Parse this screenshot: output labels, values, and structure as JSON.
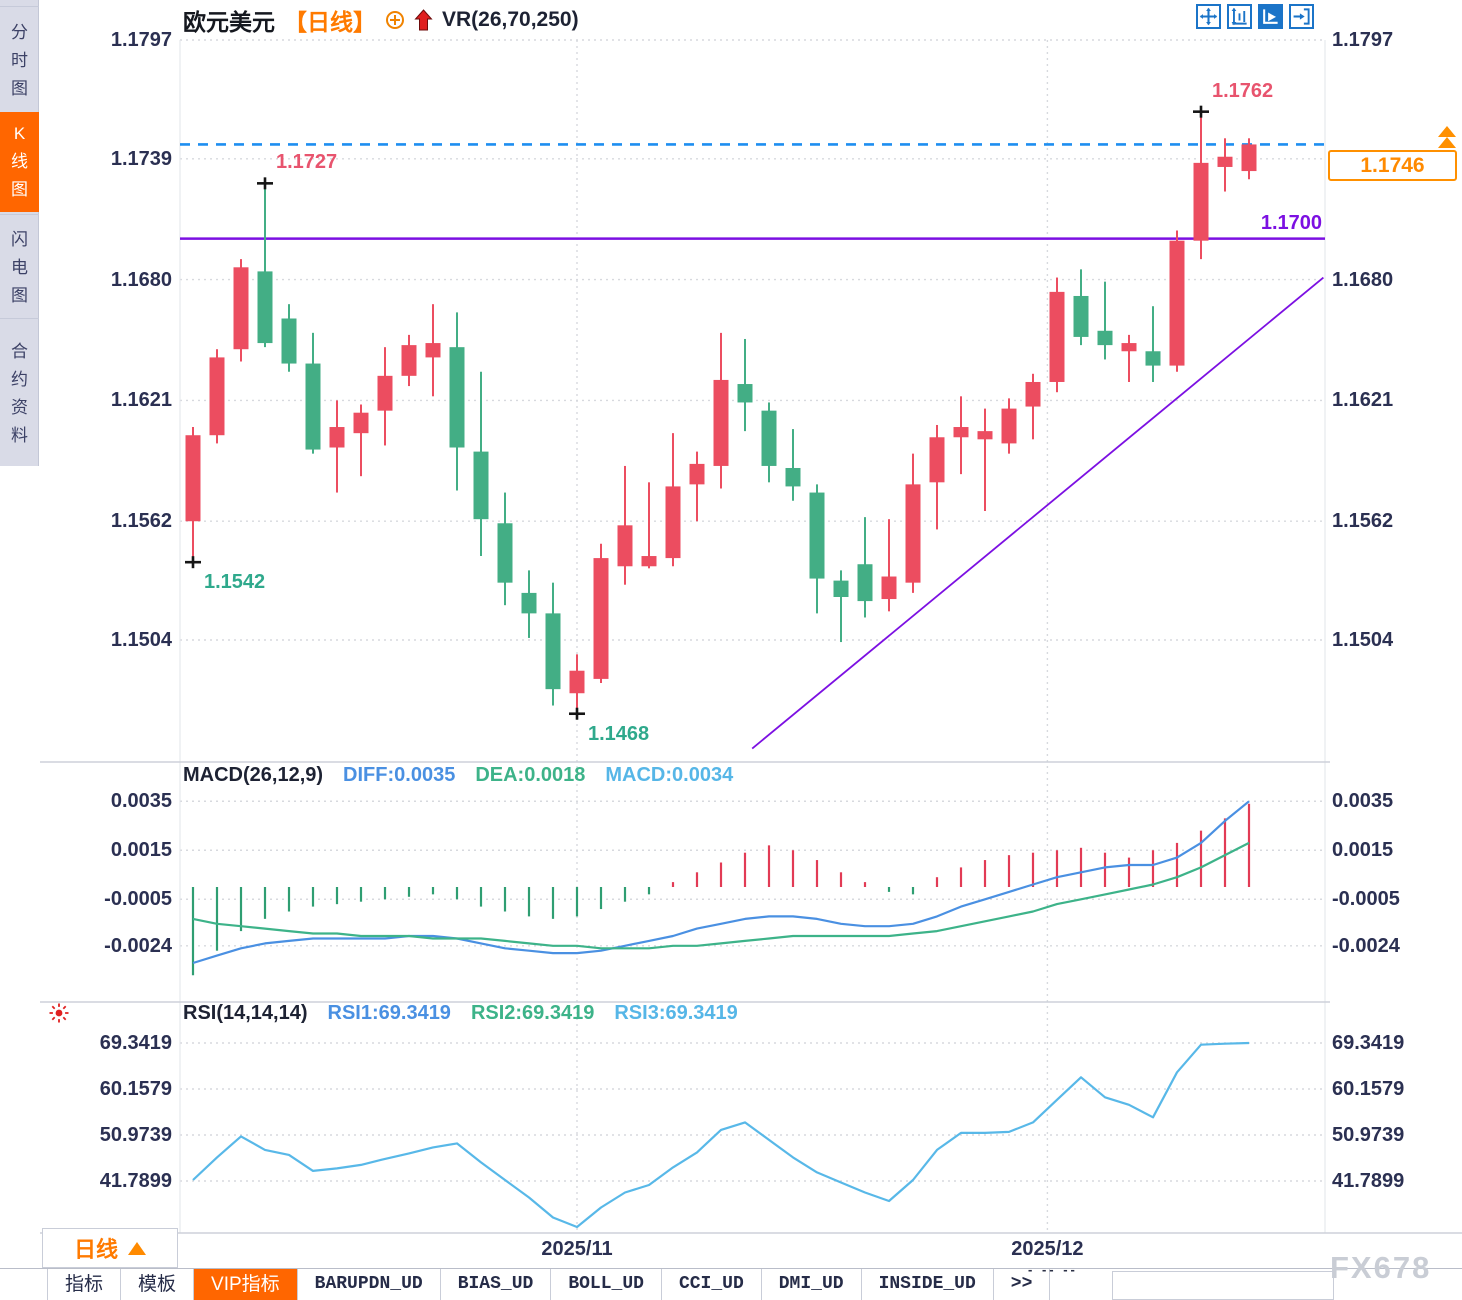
{
  "window": {
    "watermark": "FX678"
  },
  "sidebar": {
    "items": [
      {
        "label": "分时图",
        "active": false
      },
      {
        "label": "K线图",
        "active": true
      },
      {
        "label": "闪电图",
        "active": false
      },
      {
        "label": "合约资料",
        "active": false
      }
    ]
  },
  "header": {
    "symbol": "欧元美元",
    "period": "【日线】",
    "indicator": "VR(26,70,250)"
  },
  "main_chart": {
    "y_axis_left": [
      "1.1797",
      "1.1739",
      "1.1680",
      "1.1621",
      "1.1562",
      "1.1504"
    ],
    "y_axis_right": [
      "1.1797",
      "1.1680",
      "1.1621",
      "1.1562",
      "1.1504"
    ],
    "support_label": "1.1700",
    "current_price": "1.1746"
  },
  "macd_panel": {
    "title": "MACD(26,12,9)",
    "diff_label": "DIFF:0.0035",
    "dea_label": "DEA:0.0018",
    "macd_label": "MACD:0.0034",
    "axis": [
      "0.0035",
      "0.0015",
      "-0.0005",
      "-0.0024"
    ]
  },
  "rsi_panel": {
    "title": "RSI(14,14,14)",
    "rsi1_label": "RSI1:69.3419",
    "rsi2_label": "RSI2:69.3419",
    "rsi3_label": "RSI3:69.3419",
    "axis": [
      "69.3419",
      "60.1579",
      "50.9739",
      "41.7899"
    ]
  },
  "bottom": {
    "period_selector": "日线",
    "stray_marks": "- -- --",
    "tabs": [
      {
        "label": "指标",
        "active": false,
        "mono": false
      },
      {
        "label": "模板",
        "active": false,
        "mono": false
      },
      {
        "label": "VIP指标",
        "active": true,
        "mono": false
      },
      {
        "label": "BARUPDN_UD",
        "active": false,
        "mono": true
      },
      {
        "label": "BIAS_UD",
        "active": false,
        "mono": true
      },
      {
        "label": "BOLL_UD",
        "active": false,
        "mono": true
      },
      {
        "label": "CCI_UD",
        "active": false,
        "mono": true
      },
      {
        "label": "DMI_UD",
        "active": false,
        "mono": true
      },
      {
        "label": "INSIDE_UD",
        "active": false,
        "mono": true
      },
      {
        "label": ">>",
        "active": false,
        "mono": true
      }
    ]
  },
  "chart_data": {
    "type": "candlestick",
    "title": "欧元美元 日线 (EUR/USD Daily)",
    "price_axis_ticks": [
      1.1797,
      1.1739,
      1.168,
      1.1621,
      1.1562,
      1.1504
    ],
    "month_gridlines": [
      {
        "index": 16,
        "label": "2025/11"
      },
      {
        "index": 35.6,
        "label": "2025/12"
      }
    ],
    "candles": [
      [
        1.1562,
        1.1608,
        1.1542,
        1.1604
      ],
      [
        1.1604,
        1.1646,
        1.16,
        1.1642
      ],
      [
        1.1646,
        1.169,
        1.164,
        1.1686
      ],
      [
        1.1684,
        1.1727,
        1.1647,
        1.1649
      ],
      [
        1.1661,
        1.1668,
        1.1635,
        1.1639
      ],
      [
        1.1639,
        1.1654,
        1.1595,
        1.1597
      ],
      [
        1.1598,
        1.1621,
        1.1576,
        1.1608
      ],
      [
        1.1605,
        1.1619,
        1.1584,
        1.1615
      ],
      [
        1.1616,
        1.1647,
        1.1599,
        1.1633
      ],
      [
        1.1633,
        1.1653,
        1.1628,
        1.1648
      ],
      [
        1.1642,
        1.1668,
        1.1623,
        1.1649
      ],
      [
        1.1647,
        1.1664,
        1.1577,
        1.1598
      ],
      [
        1.1596,
        1.1635,
        1.1545,
        1.1563
      ],
      [
        1.1561,
        1.1576,
        1.1521,
        1.1532
      ],
      [
        1.1527,
        1.1538,
        1.1505,
        1.1517
      ],
      [
        1.1517,
        1.1532,
        1.1472,
        1.148
      ],
      [
        1.1478,
        1.1497,
        1.1468,
        1.1489
      ],
      [
        1.1485,
        1.1551,
        1.1483,
        1.1544
      ],
      [
        1.154,
        1.1589,
        1.1531,
        1.156
      ],
      [
        1.154,
        1.1581,
        1.1539,
        1.1545
      ],
      [
        1.1544,
        1.1605,
        1.154,
        1.1579
      ],
      [
        1.158,
        1.1596,
        1.1562,
        1.159
      ],
      [
        1.1589,
        1.1654,
        1.1578,
        1.1631
      ],
      [
        1.1629,
        1.1651,
        1.1606,
        1.162
      ],
      [
        1.1616,
        1.162,
        1.1581,
        1.1589
      ],
      [
        1.1588,
        1.1607,
        1.1572,
        1.1579
      ],
      [
        1.1576,
        1.158,
        1.1517,
        1.1534
      ],
      [
        1.1533,
        1.1538,
        1.1503,
        1.1525
      ],
      [
        1.1541,
        1.1564,
        1.1515,
        1.1523
      ],
      [
        1.1524,
        1.1563,
        1.1518,
        1.1535
      ],
      [
        1.1532,
        1.1595,
        1.1527,
        1.158
      ],
      [
        1.1581,
        1.1609,
        1.1558,
        1.1603
      ],
      [
        1.1603,
        1.1623,
        1.1585,
        1.1608
      ],
      [
        1.1602,
        1.1617,
        1.1567,
        1.1606
      ],
      [
        1.16,
        1.1622,
        1.1595,
        1.1617
      ],
      [
        1.1618,
        1.1634,
        1.1602,
        1.163
      ],
      [
        1.163,
        1.1681,
        1.1625,
        1.1674
      ],
      [
        1.1672,
        1.1685,
        1.1648,
        1.1652
      ],
      [
        1.1655,
        1.1679,
        1.1641,
        1.1648
      ],
      [
        1.1645,
        1.1653,
        1.163,
        1.1649
      ],
      [
        1.1645,
        1.1667,
        1.163,
        1.1638
      ],
      [
        1.1638,
        1.1704,
        1.1635,
        1.1699
      ],
      [
        1.1699,
        1.1762,
        1.169,
        1.1737
      ],
      [
        1.1735,
        1.1749,
        1.1723,
        1.174
      ],
      [
        1.1733,
        1.1749,
        1.1729,
        1.1746
      ]
    ],
    "markers": [
      {
        "index": 0,
        "at": "low",
        "label": "1.1542"
      },
      {
        "index": 3,
        "at": "high",
        "label": "1.1727"
      },
      {
        "index": 16,
        "at": "low",
        "label": "1.1468"
      },
      {
        "index": 42,
        "at": "high",
        "label": "1.1762"
      }
    ],
    "levels": {
      "resistance_dashed": 1.1746,
      "support": 1.17,
      "current_price": 1.1746
    },
    "trendline": {
      "from_index": 23.3,
      "from_price": 1.1451,
      "to_index": 47.1,
      "to_price": 1.1681
    },
    "macd": {
      "params": [
        26,
        12,
        9
      ],
      "latest": {
        "diff": 0.0035,
        "dea": 0.0018,
        "macd": 0.0034
      },
      "axis_ticks": [
        0.0035,
        0.0015,
        -0.0005,
        -0.0024
      ],
      "diff": [
        -0.0031,
        -0.0028,
        -0.0025,
        -0.0023,
        -0.0022,
        -0.0021,
        -0.0021,
        -0.0021,
        -0.0021,
        -0.002,
        -0.002,
        -0.0021,
        -0.0023,
        -0.0025,
        -0.0026,
        -0.0027,
        -0.0027,
        -0.0026,
        -0.0024,
        -0.0022,
        -0.002,
        -0.0017,
        -0.0015,
        -0.0013,
        -0.0012,
        -0.0012,
        -0.0013,
        -0.0015,
        -0.0016,
        -0.0016,
        -0.0015,
        -0.0012,
        -0.0008,
        -0.0005,
        -0.0002,
        0.0001,
        0.0004,
        0.0006,
        0.0008,
        0.0009,
        0.0009,
        0.0012,
        0.0018,
        0.0027,
        0.0035
      ],
      "dea": [
        -0.0013,
        -0.0015,
        -0.0016,
        -0.0017,
        -0.0018,
        -0.0019,
        -0.0019,
        -0.002,
        -0.002,
        -0.002,
        -0.0021,
        -0.0021,
        -0.0021,
        -0.0022,
        -0.0023,
        -0.0024,
        -0.0024,
        -0.0025,
        -0.0025,
        -0.0025,
        -0.0024,
        -0.0024,
        -0.0023,
        -0.0022,
        -0.0021,
        -0.002,
        -0.002,
        -0.002,
        -0.002,
        -0.002,
        -0.0019,
        -0.0018,
        -0.0016,
        -0.0014,
        -0.0012,
        -0.001,
        -0.0007,
        -0.0005,
        -0.0003,
        -0.0001,
        0.0001,
        0.0004,
        0.0008,
        0.0013,
        0.0018
      ],
      "histogram": [
        -0.0036,
        -0.0026,
        -0.0018,
        -0.0013,
        -0.001,
        -0.0008,
        -0.0007,
        -0.0006,
        -0.0005,
        -0.0004,
        -0.0003,
        -0.0005,
        -0.0008,
        -0.001,
        -0.0012,
        -0.0013,
        -0.0012,
        -0.0009,
        -0.0006,
        -0.0003,
        0.0002,
        0.0006,
        0.001,
        0.0014,
        0.0017,
        0.0015,
        0.0011,
        0.0006,
        0.0002,
        -0.0002,
        -0.0003,
        0.0004,
        0.0008,
        0.0011,
        0.0013,
        0.0014,
        0.0015,
        0.0016,
        0.0014,
        0.0012,
        0.0015,
        0.0018,
        0.0023,
        0.0028,
        0.0034
      ]
    },
    "rsi": {
      "params": [
        14,
        14,
        14
      ],
      "latest": {
        "rsi1": 69.3419,
        "rsi2": 69.3419,
        "rsi3": 69.3419
      },
      "axis_ticks": [
        69.3419,
        60.1579,
        50.9739,
        41.7899
      ],
      "values": [
        42.0,
        46.5,
        50.7,
        48.0,
        47.0,
        43.8,
        44.3,
        45.0,
        46.2,
        47.3,
        48.5,
        49.3,
        45.5,
        42.0,
        38.5,
        34.5,
        32.6,
        36.5,
        39.5,
        41.0,
        44.5,
        47.5,
        52.0,
        53.5,
        50.0,
        46.5,
        43.5,
        41.5,
        39.5,
        37.8,
        42.0,
        48.0,
        51.4,
        51.4,
        51.6,
        53.5,
        58.0,
        62.5,
        58.5,
        57.0,
        54.5,
        63.5,
        69.0,
        69.2,
        69.3419
      ]
    },
    "x_axis_labels": [
      "2025/11",
      "2025/12"
    ],
    "colors": {
      "up": "#ec4d60",
      "down": "#43ae85",
      "hist_up": "#e23b55",
      "hist_down": "#2f9e72",
      "diff_line": "#4a90e2",
      "dea_line": "#3db389",
      "rsi_line": "#58b8e8",
      "support": "#7c10e2",
      "trend": "#7c10e2",
      "resistance_dashed": "#1e8ef0",
      "marker_high": "#e8546e",
      "marker_low": "#2fa98c",
      "accent_orange": "#ff6600"
    }
  }
}
